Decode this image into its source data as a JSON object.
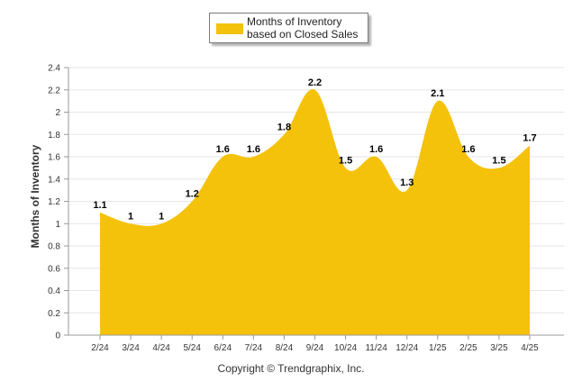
{
  "chart_data": {
    "type": "area",
    "categories": [
      "2/24",
      "3/24",
      "4/24",
      "5/24",
      "6/24",
      "7/24",
      "8/24",
      "9/24",
      "10/24",
      "11/24",
      "12/24",
      "1/25",
      "2/25",
      "3/25",
      "4/25"
    ],
    "series": [
      {
        "name": "Months of Inventory based on Closed Sales",
        "values": [
          1.1,
          1,
          1,
          1.2,
          1.6,
          1.6,
          1.8,
          2.2,
          1.5,
          1.6,
          1.3,
          2.1,
          1.6,
          1.5,
          1.7
        ]
      }
    ],
    "data_labels": [
      "1.1",
      "1",
      "1",
      "1.2",
      "1.6",
      "1.6",
      "1.8",
      "2.2",
      "1.5",
      "1.6",
      "1.3",
      "2.1",
      "1.6",
      "1.5",
      "1.7"
    ],
    "ylabel": "Months of Inventory",
    "xlabel": "",
    "ylim": [
      0,
      2.4
    ],
    "y_ticks": [
      "0",
      "0.2",
      "0.4",
      "0.6",
      "0.8",
      "1",
      "1.2",
      "1.4",
      "1.6",
      "1.8",
      "2",
      "2.2",
      "2.4"
    ],
    "grid": true,
    "legend_position": "top-center",
    "colors": {
      "area": "#f5c20b",
      "grid": "#e6e6e6"
    }
  },
  "footer": {
    "copyright": "Copyright © Trendgraphix, Inc."
  }
}
